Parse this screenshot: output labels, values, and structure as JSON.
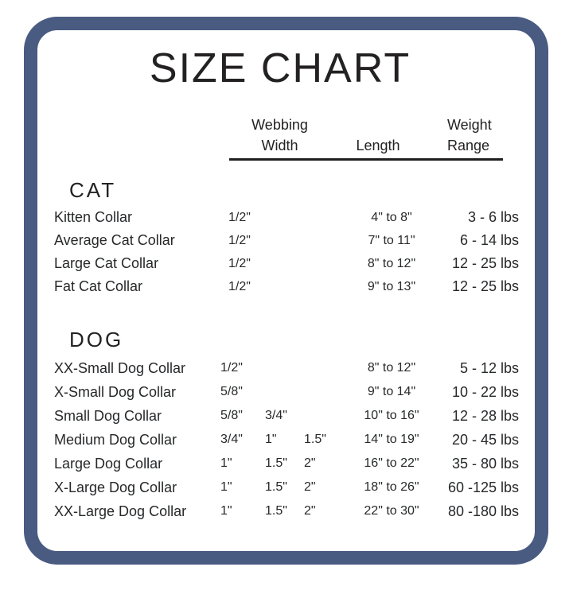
{
  "title": "SIZE CHART",
  "colors": {
    "frame_border": "#4a5b82",
    "text": "#26282a",
    "header_rule": "#1f1f20"
  },
  "chart_data": {
    "type": "table",
    "title": "SIZE CHART",
    "column_headers": {
      "webbing_line1": "Webbing",
      "webbing_line2": "Width",
      "length": "Length",
      "weight_line1": "Weight",
      "weight_line2": "Range"
    },
    "sections": [
      {
        "label": "CAT",
        "rows": [
          {
            "name": "Kitten Collar",
            "w1": "1/2\"",
            "length": "4\" to 8\"",
            "weight": "3 - 6 lbs"
          },
          {
            "name": "Average Cat Collar",
            "w1": "1/2\"",
            "length": "7\" to 11\"",
            "weight": "6 - 14 lbs"
          },
          {
            "name": "Large Cat Collar",
            "w1": "1/2\"",
            "length": "8\" to 12\"",
            "weight": "12 - 25 lbs"
          },
          {
            "name": "Fat Cat Collar",
            "w1": "1/2\"",
            "length": "9\" to 13\"",
            "weight": "12 - 25 lbs"
          }
        ]
      },
      {
        "label": "DOG",
        "rows": [
          {
            "name": "XX-Small Dog Collar",
            "w1": "1/2\"",
            "length": "8\" to 12\"",
            "weight": "5 - 12 lbs"
          },
          {
            "name": "X-Small Dog Collar",
            "w1": "5/8\"",
            "length": "9\" to 14\"",
            "weight": "10 - 22 lbs"
          },
          {
            "name": "Small Dog Collar",
            "w1": "5/8\"",
            "w2": "3/4\"",
            "length": "10\" to 16\"",
            "weight": "12 - 28 lbs"
          },
          {
            "name": "Medium Dog Collar",
            "w1": "3/4\"",
            "w2": "1\"",
            "w3": "1.5\"",
            "length": "14\" to 19\"",
            "weight": "20 - 45 lbs"
          },
          {
            "name": "Large Dog Collar",
            "w1": "1\"",
            "w2": "1.5\"",
            "w3": "2\"",
            "length": "16\" to 22\"",
            "weight": "35 - 80 lbs"
          },
          {
            "name": "X-Large Dog Collar",
            "w1": "1\"",
            "w2": "1.5\"",
            "w3": "2\"",
            "length": "18\" to 26\"",
            "weight": "60 -125 lbs"
          },
          {
            "name": "XX-Large Dog Collar",
            "w1": "1\"",
            "w2": "1.5\"",
            "w3": "2\"",
            "length": "22\" to 30\"",
            "weight": "80 -180 lbs"
          }
        ]
      }
    ]
  }
}
